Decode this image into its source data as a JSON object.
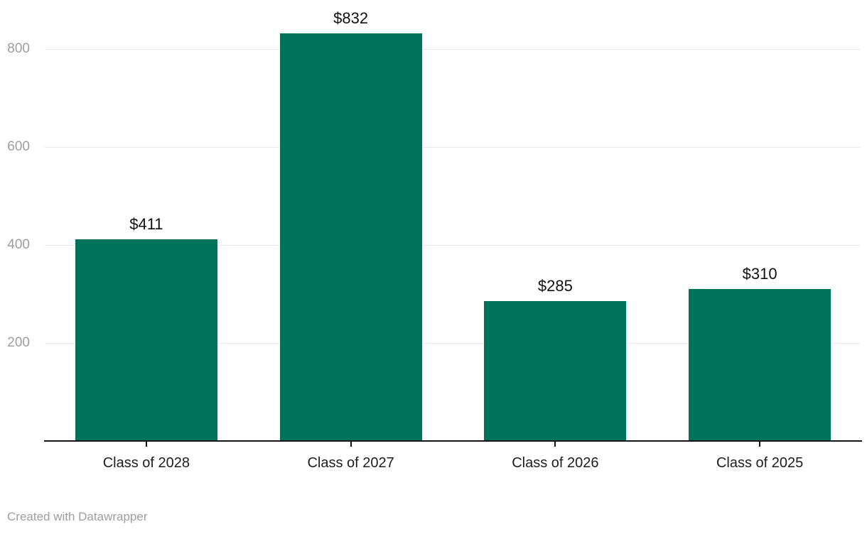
{
  "chart_data": {
    "type": "bar",
    "categories": [
      "Class of 2028",
      "Class of 2027",
      "Class of 2026",
      "Class of 2025"
    ],
    "values": [
      411,
      832,
      285,
      310
    ],
    "value_labels": [
      "$411",
      "$832",
      "$285",
      "$310"
    ],
    "y_ticks": [
      200,
      400,
      600,
      800
    ],
    "ylim": [
      0,
      900
    ],
    "title": "",
    "xlabel": "",
    "ylabel": "",
    "grid": "horizontal",
    "legend": "none",
    "bar_color": "#00735c"
  },
  "colors": {
    "bar": "#00735c",
    "gridline": "#eaeaea",
    "y_tick_label": "#9d9d9d",
    "axis_line": "#141414",
    "value_label": "#111111",
    "category_label": "#1d1d1d",
    "footer": "#9e9e9e"
  },
  "footer": {
    "attribution": "Created with Datawrapper"
  }
}
